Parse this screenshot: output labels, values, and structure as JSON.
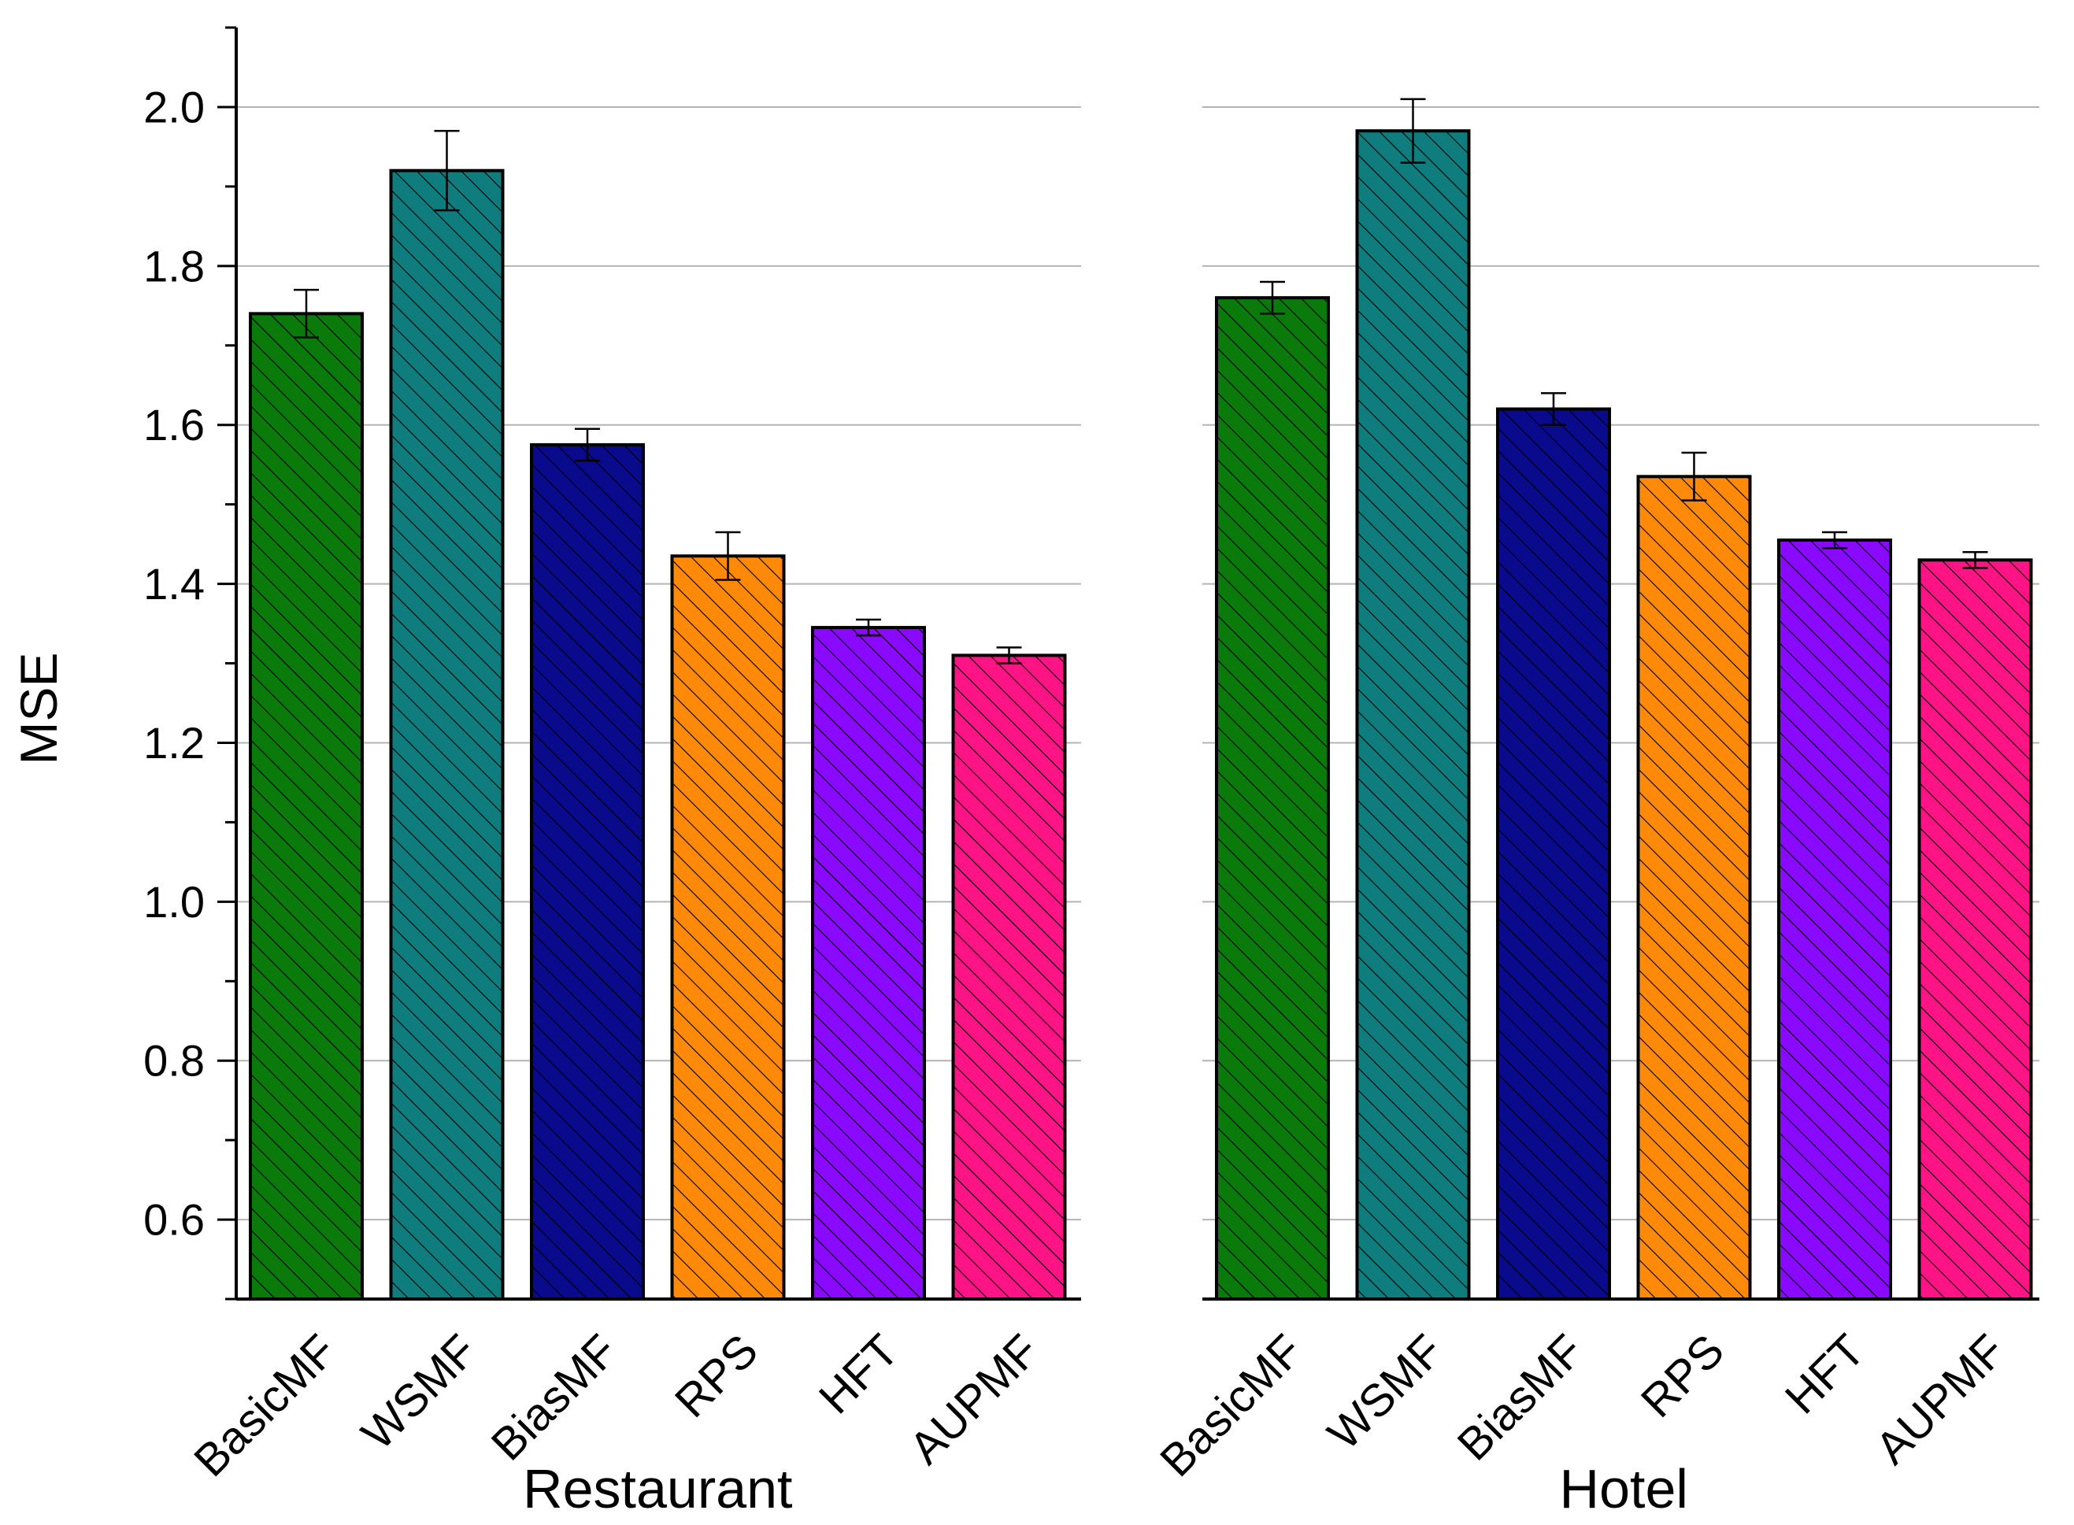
{
  "chart_data": {
    "type": "bar",
    "ylabel": "MSE",
    "ylim": [
      0.5,
      2.1
    ],
    "yticks": [
      "0.6",
      "0.8",
      "1.0",
      "1.2",
      "1.4",
      "1.6",
      "1.8",
      "2.0"
    ],
    "grid": "horizontal",
    "bar_pattern": "diagonal-hatch",
    "categories": [
      "BasicMF",
      "WSMF",
      "BiasMF",
      "RPS",
      "HFT",
      "AUPMF"
    ],
    "colors": [
      "#0a7a0a",
      "#0f7d7d",
      "#0a0a8c",
      "#ff8a0a",
      "#8a0aff",
      "#ff1485"
    ],
    "panels": [
      {
        "xlabel": "Restaurant",
        "values": [
          1.74,
          1.92,
          1.575,
          1.435,
          1.345,
          1.31
        ],
        "errors": [
          0.03,
          0.05,
          0.02,
          0.03,
          0.01,
          0.01
        ]
      },
      {
        "xlabel": "Hotel",
        "values": [
          1.76,
          1.97,
          1.62,
          1.535,
          1.455,
          1.43
        ],
        "errors": [
          0.02,
          0.04,
          0.02,
          0.03,
          0.01,
          0.01
        ]
      }
    ]
  }
}
